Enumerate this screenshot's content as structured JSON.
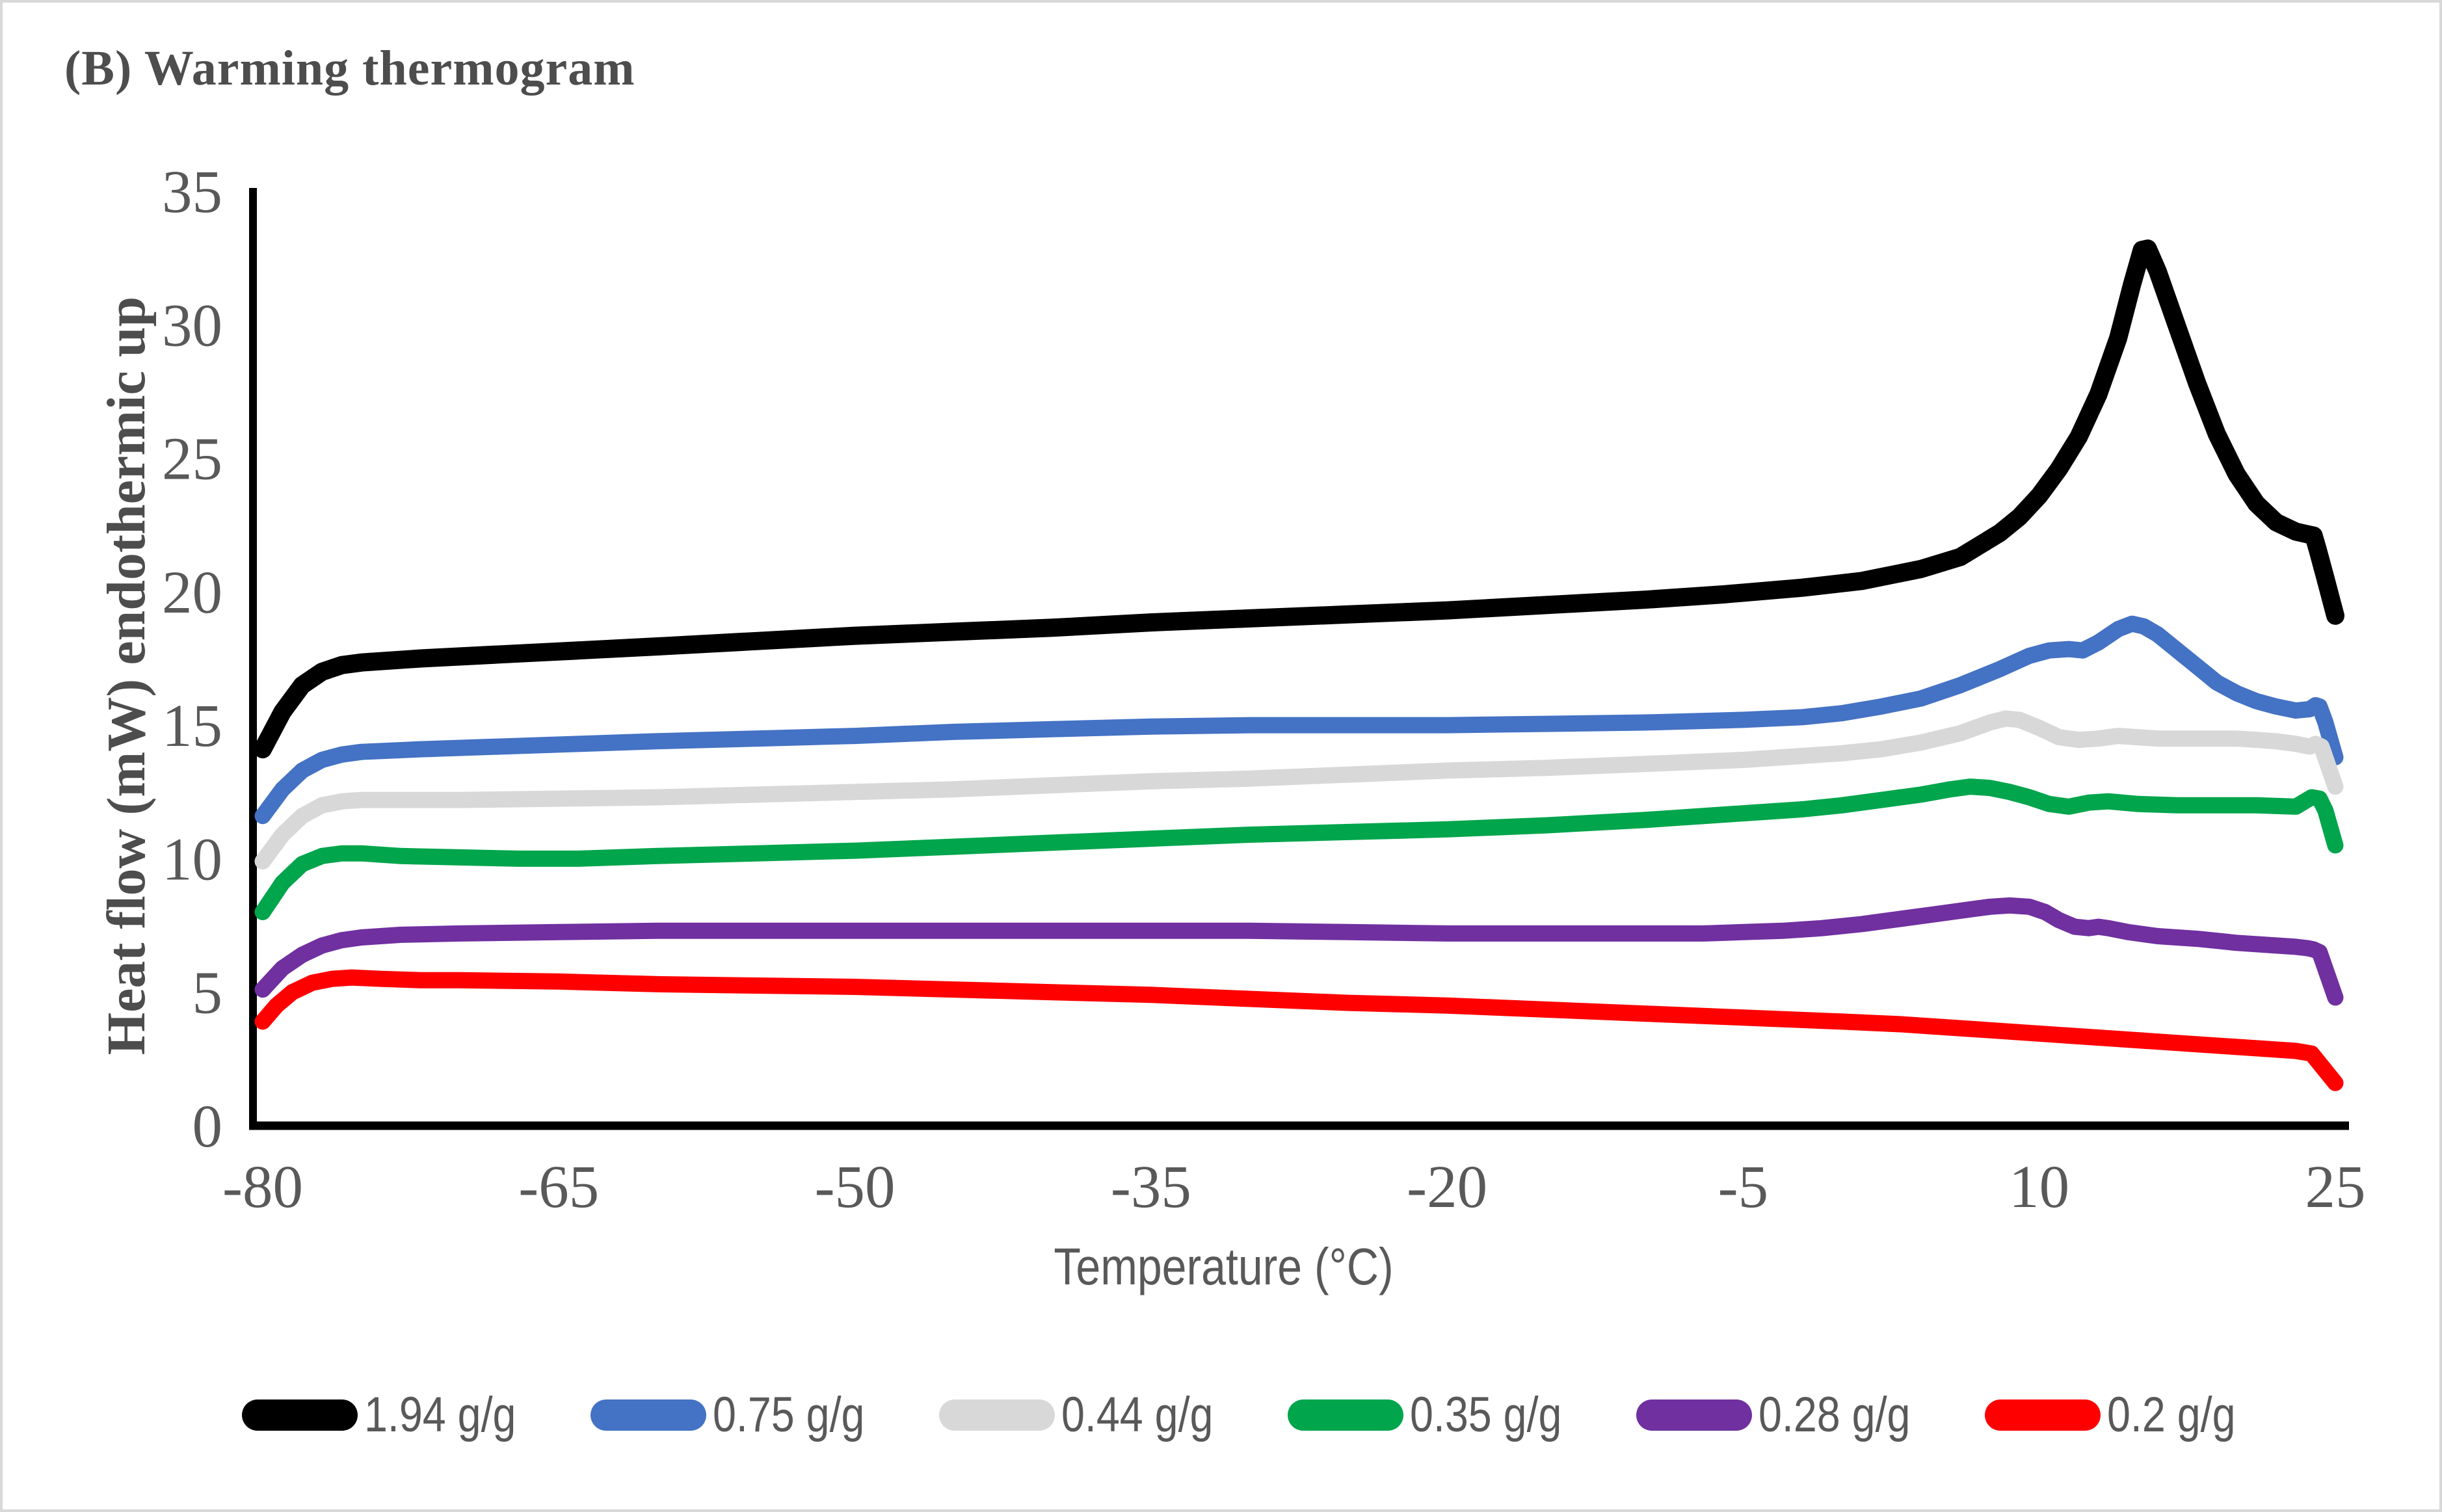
{
  "figure": {
    "title": "(B) Warming thermogram"
  },
  "colors": {
    "axis": "#000000",
    "tick_text": "#595959",
    "title_text": "#4d4d4d",
    "frame_border": "#d8d8d8"
  },
  "chart_data": {
    "type": "line",
    "title": "(B) Warming thermogram",
    "xlabel": "Temperature (°C)",
    "ylabel": "Heat flow (mW) endothermic up",
    "xlim": [
      -80,
      25
    ],
    "ylim": [
      0,
      35
    ],
    "x_ticks": [
      -80,
      -65,
      -50,
      -35,
      -20,
      -5,
      10,
      25
    ],
    "y_ticks": [
      0,
      5,
      10,
      15,
      20,
      25,
      30,
      35
    ],
    "grid": false,
    "legend_position": "bottom",
    "series": [
      {
        "name": "1.94 g/g",
        "color": "#000000",
        "points": [
          [
            -80,
            14.1
          ],
          [
            -79,
            15.5
          ],
          [
            -78,
            16.5
          ],
          [
            -77,
            17.0
          ],
          [
            -76,
            17.25
          ],
          [
            -75,
            17.35
          ],
          [
            -72,
            17.5
          ],
          [
            -68,
            17.65
          ],
          [
            -64,
            17.8
          ],
          [
            -60,
            17.95
          ],
          [
            -55,
            18.15
          ],
          [
            -50,
            18.35
          ],
          [
            -45,
            18.5
          ],
          [
            -40,
            18.65
          ],
          [
            -35,
            18.85
          ],
          [
            -30,
            19.0
          ],
          [
            -25,
            19.15
          ],
          [
            -20,
            19.3
          ],
          [
            -15,
            19.5
          ],
          [
            -10,
            19.7
          ],
          [
            -6,
            19.9
          ],
          [
            -2,
            20.15
          ],
          [
            1,
            20.4
          ],
          [
            4,
            20.85
          ],
          [
            6,
            21.3
          ],
          [
            8,
            22.2
          ],
          [
            9,
            22.8
          ],
          [
            10,
            23.6
          ],
          [
            11,
            24.6
          ],
          [
            12,
            25.8
          ],
          [
            13,
            27.4
          ],
          [
            14,
            29.5
          ],
          [
            14.7,
            31.5
          ],
          [
            15.2,
            32.8
          ],
          [
            15.5,
            32.85
          ],
          [
            16,
            32.0
          ],
          [
            17,
            29.9
          ],
          [
            18,
            27.8
          ],
          [
            19,
            25.9
          ],
          [
            20,
            24.4
          ],
          [
            21,
            23.3
          ],
          [
            22,
            22.6
          ],
          [
            23,
            22.25
          ],
          [
            23.6,
            22.15
          ],
          [
            23.9,
            22.1
          ],
          [
            24.1,
            21.6
          ],
          [
            24.5,
            20.5
          ],
          [
            25,
            19.1
          ]
        ]
      },
      {
        "name": "0.75 g/g",
        "color": "#4472c4",
        "points": [
          [
            -80,
            11.6
          ],
          [
            -79,
            12.6
          ],
          [
            -78,
            13.3
          ],
          [
            -77,
            13.7
          ],
          [
            -76,
            13.9
          ],
          [
            -75,
            14.0
          ],
          [
            -72,
            14.1
          ],
          [
            -68,
            14.2
          ],
          [
            -64,
            14.3
          ],
          [
            -60,
            14.4
          ],
          [
            -55,
            14.5
          ],
          [
            -50,
            14.6
          ],
          [
            -45,
            14.75
          ],
          [
            -40,
            14.85
          ],
          [
            -35,
            14.95
          ],
          [
            -30,
            15.0
          ],
          [
            -25,
            15.0
          ],
          [
            -20,
            15.0
          ],
          [
            -15,
            15.05
          ],
          [
            -10,
            15.1
          ],
          [
            -5,
            15.2
          ],
          [
            -2,
            15.3
          ],
          [
            0,
            15.45
          ],
          [
            2,
            15.7
          ],
          [
            4,
            16.0
          ],
          [
            6,
            16.5
          ],
          [
            8,
            17.1
          ],
          [
            9.5,
            17.6
          ],
          [
            10.5,
            17.8
          ],
          [
            11.5,
            17.85
          ],
          [
            12.2,
            17.8
          ],
          [
            13,
            18.1
          ],
          [
            14,
            18.6
          ],
          [
            14.7,
            18.8
          ],
          [
            15.3,
            18.7
          ],
          [
            16,
            18.4
          ],
          [
            17,
            17.8
          ],
          [
            18,
            17.2
          ],
          [
            19,
            16.6
          ],
          [
            20,
            16.2
          ],
          [
            21,
            15.9
          ],
          [
            22,
            15.7
          ],
          [
            23,
            15.55
          ],
          [
            23.7,
            15.6
          ],
          [
            24,
            15.75
          ],
          [
            24.2,
            15.7
          ],
          [
            24.5,
            15.1
          ],
          [
            25,
            13.8
          ]
        ]
      },
      {
        "name": "0.44 g/g",
        "color": "#d8d8d8",
        "points": [
          [
            -80,
            9.9
          ],
          [
            -79,
            10.9
          ],
          [
            -78,
            11.6
          ],
          [
            -77,
            12.0
          ],
          [
            -76,
            12.15
          ],
          [
            -75,
            12.2
          ],
          [
            -73,
            12.2
          ],
          [
            -70,
            12.2
          ],
          [
            -65,
            12.25
          ],
          [
            -60,
            12.3
          ],
          [
            -55,
            12.4
          ],
          [
            -50,
            12.5
          ],
          [
            -45,
            12.6
          ],
          [
            -40,
            12.75
          ],
          [
            -35,
            12.9
          ],
          [
            -30,
            13.0
          ],
          [
            -25,
            13.15
          ],
          [
            -20,
            13.3
          ],
          [
            -15,
            13.4
          ],
          [
            -10,
            13.55
          ],
          [
            -5,
            13.7
          ],
          [
            -2,
            13.85
          ],
          [
            0,
            13.95
          ],
          [
            2,
            14.1
          ],
          [
            4,
            14.35
          ],
          [
            6,
            14.7
          ],
          [
            7.5,
            15.1
          ],
          [
            8.3,
            15.25
          ],
          [
            9,
            15.2
          ],
          [
            10,
            14.9
          ],
          [
            11,
            14.55
          ],
          [
            12,
            14.45
          ],
          [
            13,
            14.5
          ],
          [
            14,
            14.6
          ],
          [
            15,
            14.55
          ],
          [
            16,
            14.5
          ],
          [
            18,
            14.5
          ],
          [
            20,
            14.5
          ],
          [
            21,
            14.45
          ],
          [
            22,
            14.4
          ],
          [
            23,
            14.3
          ],
          [
            23.7,
            14.2
          ],
          [
            24,
            14.3
          ],
          [
            24.3,
            14.2
          ],
          [
            25,
            12.7
          ]
        ]
      },
      {
        "name": "0.35 g/g",
        "color": "#00a54c",
        "points": [
          [
            -80,
            8.0
          ],
          [
            -79,
            9.1
          ],
          [
            -78,
            9.8
          ],
          [
            -77,
            10.1
          ],
          [
            -76,
            10.2
          ],
          [
            -75,
            10.2
          ],
          [
            -73,
            10.1
          ],
          [
            -70,
            10.05
          ],
          [
            -67,
            10.0
          ],
          [
            -64,
            10.0
          ],
          [
            -60,
            10.1
          ],
          [
            -55,
            10.2
          ],
          [
            -50,
            10.3
          ],
          [
            -45,
            10.45
          ],
          [
            -40,
            10.6
          ],
          [
            -35,
            10.75
          ],
          [
            -30,
            10.9
          ],
          [
            -25,
            11.0
          ],
          [
            -20,
            11.1
          ],
          [
            -15,
            11.25
          ],
          [
            -10,
            11.45
          ],
          [
            -5,
            11.7
          ],
          [
            -2,
            11.85
          ],
          [
            0,
            12.0
          ],
          [
            2,
            12.2
          ],
          [
            4,
            12.4
          ],
          [
            5.5,
            12.6
          ],
          [
            6.5,
            12.7
          ],
          [
            7.5,
            12.65
          ],
          [
            8.5,
            12.5
          ],
          [
            9.5,
            12.3
          ],
          [
            10.5,
            12.05
          ],
          [
            11.5,
            11.95
          ],
          [
            12.5,
            12.1
          ],
          [
            13.5,
            12.15
          ],
          [
            15,
            12.05
          ],
          [
            17,
            12.0
          ],
          [
            19,
            12.0
          ],
          [
            21,
            12.0
          ],
          [
            23,
            11.95
          ],
          [
            23.8,
            12.3
          ],
          [
            24.2,
            12.25
          ],
          [
            24.5,
            11.8
          ],
          [
            25,
            10.5
          ]
        ]
      },
      {
        "name": "0.28 g/g",
        "color": "#7030a0",
        "points": [
          [
            -80,
            5.1
          ],
          [
            -79,
            5.9
          ],
          [
            -78,
            6.4
          ],
          [
            -77,
            6.75
          ],
          [
            -76,
            6.95
          ],
          [
            -75,
            7.05
          ],
          [
            -73,
            7.15
          ],
          [
            -70,
            7.2
          ],
          [
            -65,
            7.25
          ],
          [
            -60,
            7.3
          ],
          [
            -50,
            7.3
          ],
          [
            -40,
            7.3
          ],
          [
            -35,
            7.3
          ],
          [
            -30,
            7.3
          ],
          [
            -25,
            7.25
          ],
          [
            -20,
            7.2
          ],
          [
            -15,
            7.2
          ],
          [
            -10,
            7.2
          ],
          [
            -7,
            7.2
          ],
          [
            -5,
            7.25
          ],
          [
            -3,
            7.3
          ],
          [
            -1,
            7.4
          ],
          [
            1,
            7.55
          ],
          [
            3,
            7.75
          ],
          [
            5,
            7.95
          ],
          [
            6.5,
            8.1
          ],
          [
            7.5,
            8.2
          ],
          [
            8.5,
            8.25
          ],
          [
            9.5,
            8.2
          ],
          [
            10.3,
            8.0
          ],
          [
            11,
            7.7
          ],
          [
            11.8,
            7.45
          ],
          [
            12.5,
            7.4
          ],
          [
            13,
            7.45
          ],
          [
            13.5,
            7.4
          ],
          [
            14.5,
            7.25
          ],
          [
            16,
            7.1
          ],
          [
            18,
            7.0
          ],
          [
            20,
            6.85
          ],
          [
            22,
            6.75
          ],
          [
            23,
            6.7
          ],
          [
            23.6,
            6.65
          ],
          [
            23.9,
            6.6
          ],
          [
            24.2,
            6.5
          ],
          [
            25,
            4.8
          ]
        ]
      },
      {
        "name": "0.2 g/g",
        "color": "#ff0000",
        "points": [
          [
            -80,
            3.9
          ],
          [
            -79.3,
            4.5
          ],
          [
            -78.5,
            5.0
          ],
          [
            -77.5,
            5.35
          ],
          [
            -76.5,
            5.5
          ],
          [
            -75.5,
            5.55
          ],
          [
            -74,
            5.5
          ],
          [
            -72,
            5.45
          ],
          [
            -70,
            5.45
          ],
          [
            -65,
            5.4
          ],
          [
            -60,
            5.3
          ],
          [
            -55,
            5.25
          ],
          [
            -50,
            5.2
          ],
          [
            -45,
            5.1
          ],
          [
            -40,
            5.0
          ],
          [
            -35,
            4.9
          ],
          [
            -30,
            4.75
          ],
          [
            -25,
            4.6
          ],
          [
            -20,
            4.5
          ],
          [
            -15,
            4.35
          ],
          [
            -10,
            4.2
          ],
          [
            -5,
            4.05
          ],
          [
            0,
            3.9
          ],
          [
            3,
            3.8
          ],
          [
            6,
            3.65
          ],
          [
            9,
            3.5
          ],
          [
            12,
            3.35
          ],
          [
            15,
            3.2
          ],
          [
            18,
            3.05
          ],
          [
            21,
            2.9
          ],
          [
            23,
            2.8
          ],
          [
            23.8,
            2.7
          ],
          [
            25,
            1.6
          ]
        ]
      }
    ]
  }
}
